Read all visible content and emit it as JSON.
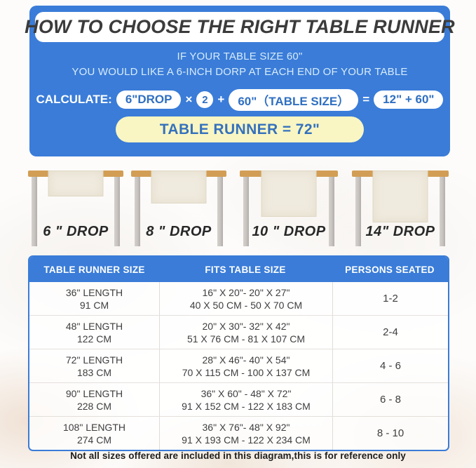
{
  "header": {
    "title": "HOW TO CHOOSE THE RIGHT TABLE RUNNER"
  },
  "intro": {
    "line1": "IF YOUR TABLE SIZE 60\"",
    "line2": "YOU WOULD LIKE A 6-INCH DORP AT EACH END OF YOUR TABLE"
  },
  "calculation": {
    "label": "CALCULATE:",
    "drop_pill": "6\"DROP",
    "times": "×",
    "multiplier": "2",
    "plus": "+",
    "table_size_pill": "60\"（TABLE SIZE）",
    "equals": "=",
    "sum_pill": "12\" + 60\"",
    "result": "TABLE RUNNER = 72\""
  },
  "figures": [
    {
      "label": "6 \" DROP",
      "drop_inches": 6
    },
    {
      "label": "8 \" DROP",
      "drop_inches": 8
    },
    {
      "label": "10 \" DROP",
      "drop_inches": 10
    },
    {
      "label": "14\" DROP",
      "drop_inches": 14
    }
  ],
  "size_table": {
    "headers": [
      "TABLE RUNNER SIZE",
      "FITS TABLE SIZE",
      "PERSONS SEATED"
    ],
    "rows": [
      {
        "runner_in": "36\" LENGTH",
        "runner_cm": "91 CM",
        "fits_in": "16\" X 20\"- 20\" X 27\"",
        "fits_cm": "40 X 50 CM - 50 X 70 CM",
        "persons": "1-2"
      },
      {
        "runner_in": "48\" LENGTH",
        "runner_cm": "122 CM",
        "fits_in": "20\" X 30\"- 32\" X 42\"",
        "fits_cm": "51 X 76 CM - 81 X 107 CM",
        "persons": "2-4"
      },
      {
        "runner_in": "72\" LENGTH",
        "runner_cm": "183 CM",
        "fits_in": "28\" X 46\"- 40\" X 54\"",
        "fits_cm": "70 X 115 CM - 100 X 137 CM",
        "persons": "4 - 6"
      },
      {
        "runner_in": "90\" LENGTH",
        "runner_cm": "228 CM",
        "fits_in": "36\" X 60\" - 48\" X 72\"",
        "fits_cm": "91 X 152 CM - 122 X 183 CM",
        "persons": "6 - 8"
      },
      {
        "runner_in": "108\" LENGTH",
        "runner_cm": "274 CM",
        "fits_in": "36\" X 76\"- 48\" X 92\"",
        "fits_cm": "91 X 193 CM - 122 X 234 CM",
        "persons": "8 - 10"
      }
    ]
  },
  "footer": {
    "note": "Not all sizes offered are included in this diagram,this is for reference only"
  },
  "colors": {
    "panel_blue": "#3a7cd8",
    "pill_text_blue": "#2f6fc1",
    "result_yellow": "#f9f6c3",
    "wood_tan": "#d29e55",
    "runner_cream": "#f0ebdf"
  }
}
